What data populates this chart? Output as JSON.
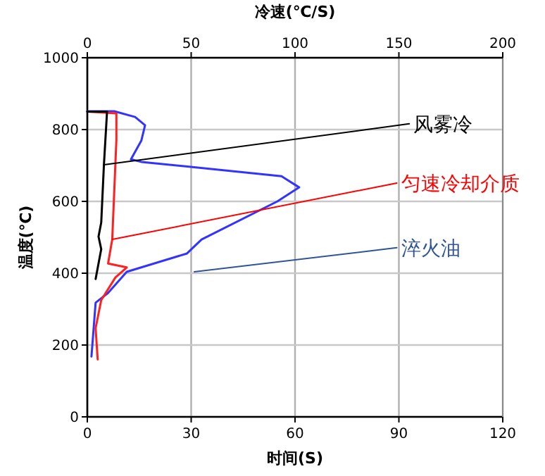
{
  "chart_data": {
    "type": "line",
    "xlabel": "时间(S)",
    "x2label": "冷速(℃/S)",
    "ylabel": "温度(℃)",
    "xlim": [
      0,
      120
    ],
    "xticks": [
      0,
      30,
      60,
      90,
      120
    ],
    "x2lim": [
      0,
      200
    ],
    "x2ticks": [
      0,
      50,
      100,
      150,
      200
    ],
    "ylim": [
      0,
      1000
    ],
    "yticks": [
      0,
      200,
      400,
      600,
      800,
      1000
    ],
    "grid": true,
    "series": [
      {
        "color": "#3333ff",
        "axis": "x2",
        "x": [
          0,
          13,
          23,
          27.8,
          26,
          21,
          26,
          93.5,
          102,
          91.5,
          55,
          48,
          19,
          10,
          4,
          2
        ],
        "values": [
          851,
          851,
          835,
          812,
          769,
          717,
          710,
          670,
          639,
          600,
          494,
          455,
          404,
          345,
          318,
          168
        ]
      },
      {
        "color": "#ff2020",
        "axis": "x2",
        "x": [
          0,
          14,
          14,
          12,
          10,
          19,
          13.5,
          6.7,
          4,
          5
        ],
        "values": [
          850,
          845,
          771,
          494,
          427,
          416,
          388,
          325,
          247,
          160
        ]
      },
      {
        "color": "#000000",
        "axis": "x2",
        "x": [
          0,
          9.5,
          8,
          6.7,
          5.4,
          6.7,
          4
        ],
        "values": [
          850,
          850,
          702,
          541,
          502,
          467,
          384
        ]
      },
      {
        "name": "风雾冷",
        "color": "#000000",
        "axis": "x2",
        "x": [
          8,
          155
        ],
        "values": [
          702,
          816
        ]
      },
      {
        "name": "匀速冷却介质",
        "color": "#ff0000",
        "axis": "x2",
        "x": [
          12,
          149
        ],
        "values": [
          494,
          651
        ]
      },
      {
        "name": "淬火油",
        "color": "#2f5597",
        "axis": "x2",
        "x": [
          51.5,
          149
        ],
        "values": [
          404,
          471
        ]
      }
    ]
  }
}
